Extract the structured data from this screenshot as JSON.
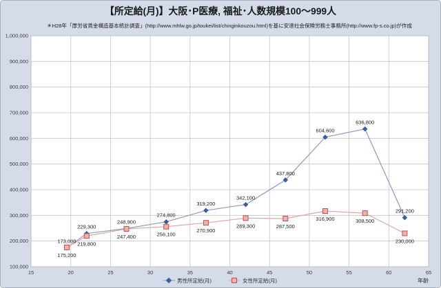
{
  "chart_data": {
    "type": "line",
    "title": "【所定給(月)】大阪･P医療, 福祉･人数規模100～999人",
    "subtitle": "＊H28年「厚労省賃金構造基本統計調査」(http://www.mhlw.go.jp/toukei/list/chinginkouzou.html)を基に安達社会保険労務士事務所(http://www.fp-s.co.jp)が作成",
    "xlabel": "年齢",
    "ylabel": "",
    "xlim": [
      15,
      65
    ],
    "ylim": [
      100000,
      1000000
    ],
    "xticks": [
      {
        "value": 15,
        "label": "15"
      },
      {
        "value": 20,
        "label": "20"
      },
      {
        "value": 25,
        "label": "25"
      },
      {
        "value": 30,
        "label": "30"
      },
      {
        "value": 35,
        "label": "35"
      },
      {
        "value": 40,
        "label": "40"
      },
      {
        "value": 45,
        "label": "45"
      },
      {
        "value": 50,
        "label": "50"
      },
      {
        "value": 55,
        "label": "55"
      },
      {
        "value": 60,
        "label": "60"
      },
      {
        "value": 65,
        "label": "65"
      }
    ],
    "yticks": [
      {
        "value": 100000,
        "label": "100,000"
      },
      {
        "value": 200000,
        "label": "200,000"
      },
      {
        "value": 300000,
        "label": "300,000"
      },
      {
        "value": 400000,
        "label": "400,000"
      },
      {
        "value": 500000,
        "label": "500,000"
      },
      {
        "value": 600000,
        "label": "600,000"
      },
      {
        "value": 700000,
        "label": "700,000"
      },
      {
        "value": 800000,
        "label": "800,000"
      },
      {
        "value": 900000,
        "label": "900,000"
      },
      {
        "value": 1000000,
        "label": "1,000,000"
      }
    ],
    "grid": true,
    "legend": "bottom",
    "colors": {
      "background": "#d3dce8",
      "frame": "#a8b0bc",
      "plot": "#ffffff",
      "grid": "#c4c4c4"
    },
    "series": [
      {
        "name": "男性所定給(月)",
        "marker": "diamond",
        "marker_color": "#3d5c9a",
        "line_color": "#8c9cbf",
        "label_position": "above",
        "points": [
          {
            "x": 19.5,
            "y": 173000,
            "label": "173,000"
          },
          {
            "x": 22,
            "y": 229300,
            "label": "229,300"
          },
          {
            "x": 27,
            "y": 248900,
            "label": "248,900"
          },
          {
            "x": 32,
            "y": 274800,
            "label": "274,800"
          },
          {
            "x": 37,
            "y": 319200,
            "label": "319,200"
          },
          {
            "x": 42,
            "y": 342100,
            "label": "342,100"
          },
          {
            "x": 47,
            "y": 437800,
            "label": "437,800"
          },
          {
            "x": 52,
            "y": 604600,
            "label": "604,600"
          },
          {
            "x": 57,
            "y": 636800,
            "label": "636,800"
          },
          {
            "x": 62,
            "y": 291200,
            "label": "291,200"
          }
        ]
      },
      {
        "name": "女性所定給(月)",
        "marker": "square",
        "marker_color": "#c0504d",
        "marker_fill": "#e9b3ab",
        "line_color": "#d9a8a2",
        "label_position": "below",
        "points": [
          {
            "x": 19.5,
            "y": 175200,
            "label": "175,200"
          },
          {
            "x": 22,
            "y": 219800,
            "label": "219,800"
          },
          {
            "x": 27,
            "y": 247400,
            "label": "247,400"
          },
          {
            "x": 32,
            "y": 256100,
            "label": "256,100"
          },
          {
            "x": 37,
            "y": 270900,
            "label": "270,900"
          },
          {
            "x": 42,
            "y": 289300,
            "label": "289,300"
          },
          {
            "x": 47,
            "y": 287500,
            "label": "287,500"
          },
          {
            "x": 52,
            "y": 316900,
            "label": "316,900"
          },
          {
            "x": 57,
            "y": 308500,
            "label": "308,500"
          },
          {
            "x": 62,
            "y": 230000,
            "label": "230,000"
          }
        ]
      }
    ]
  }
}
